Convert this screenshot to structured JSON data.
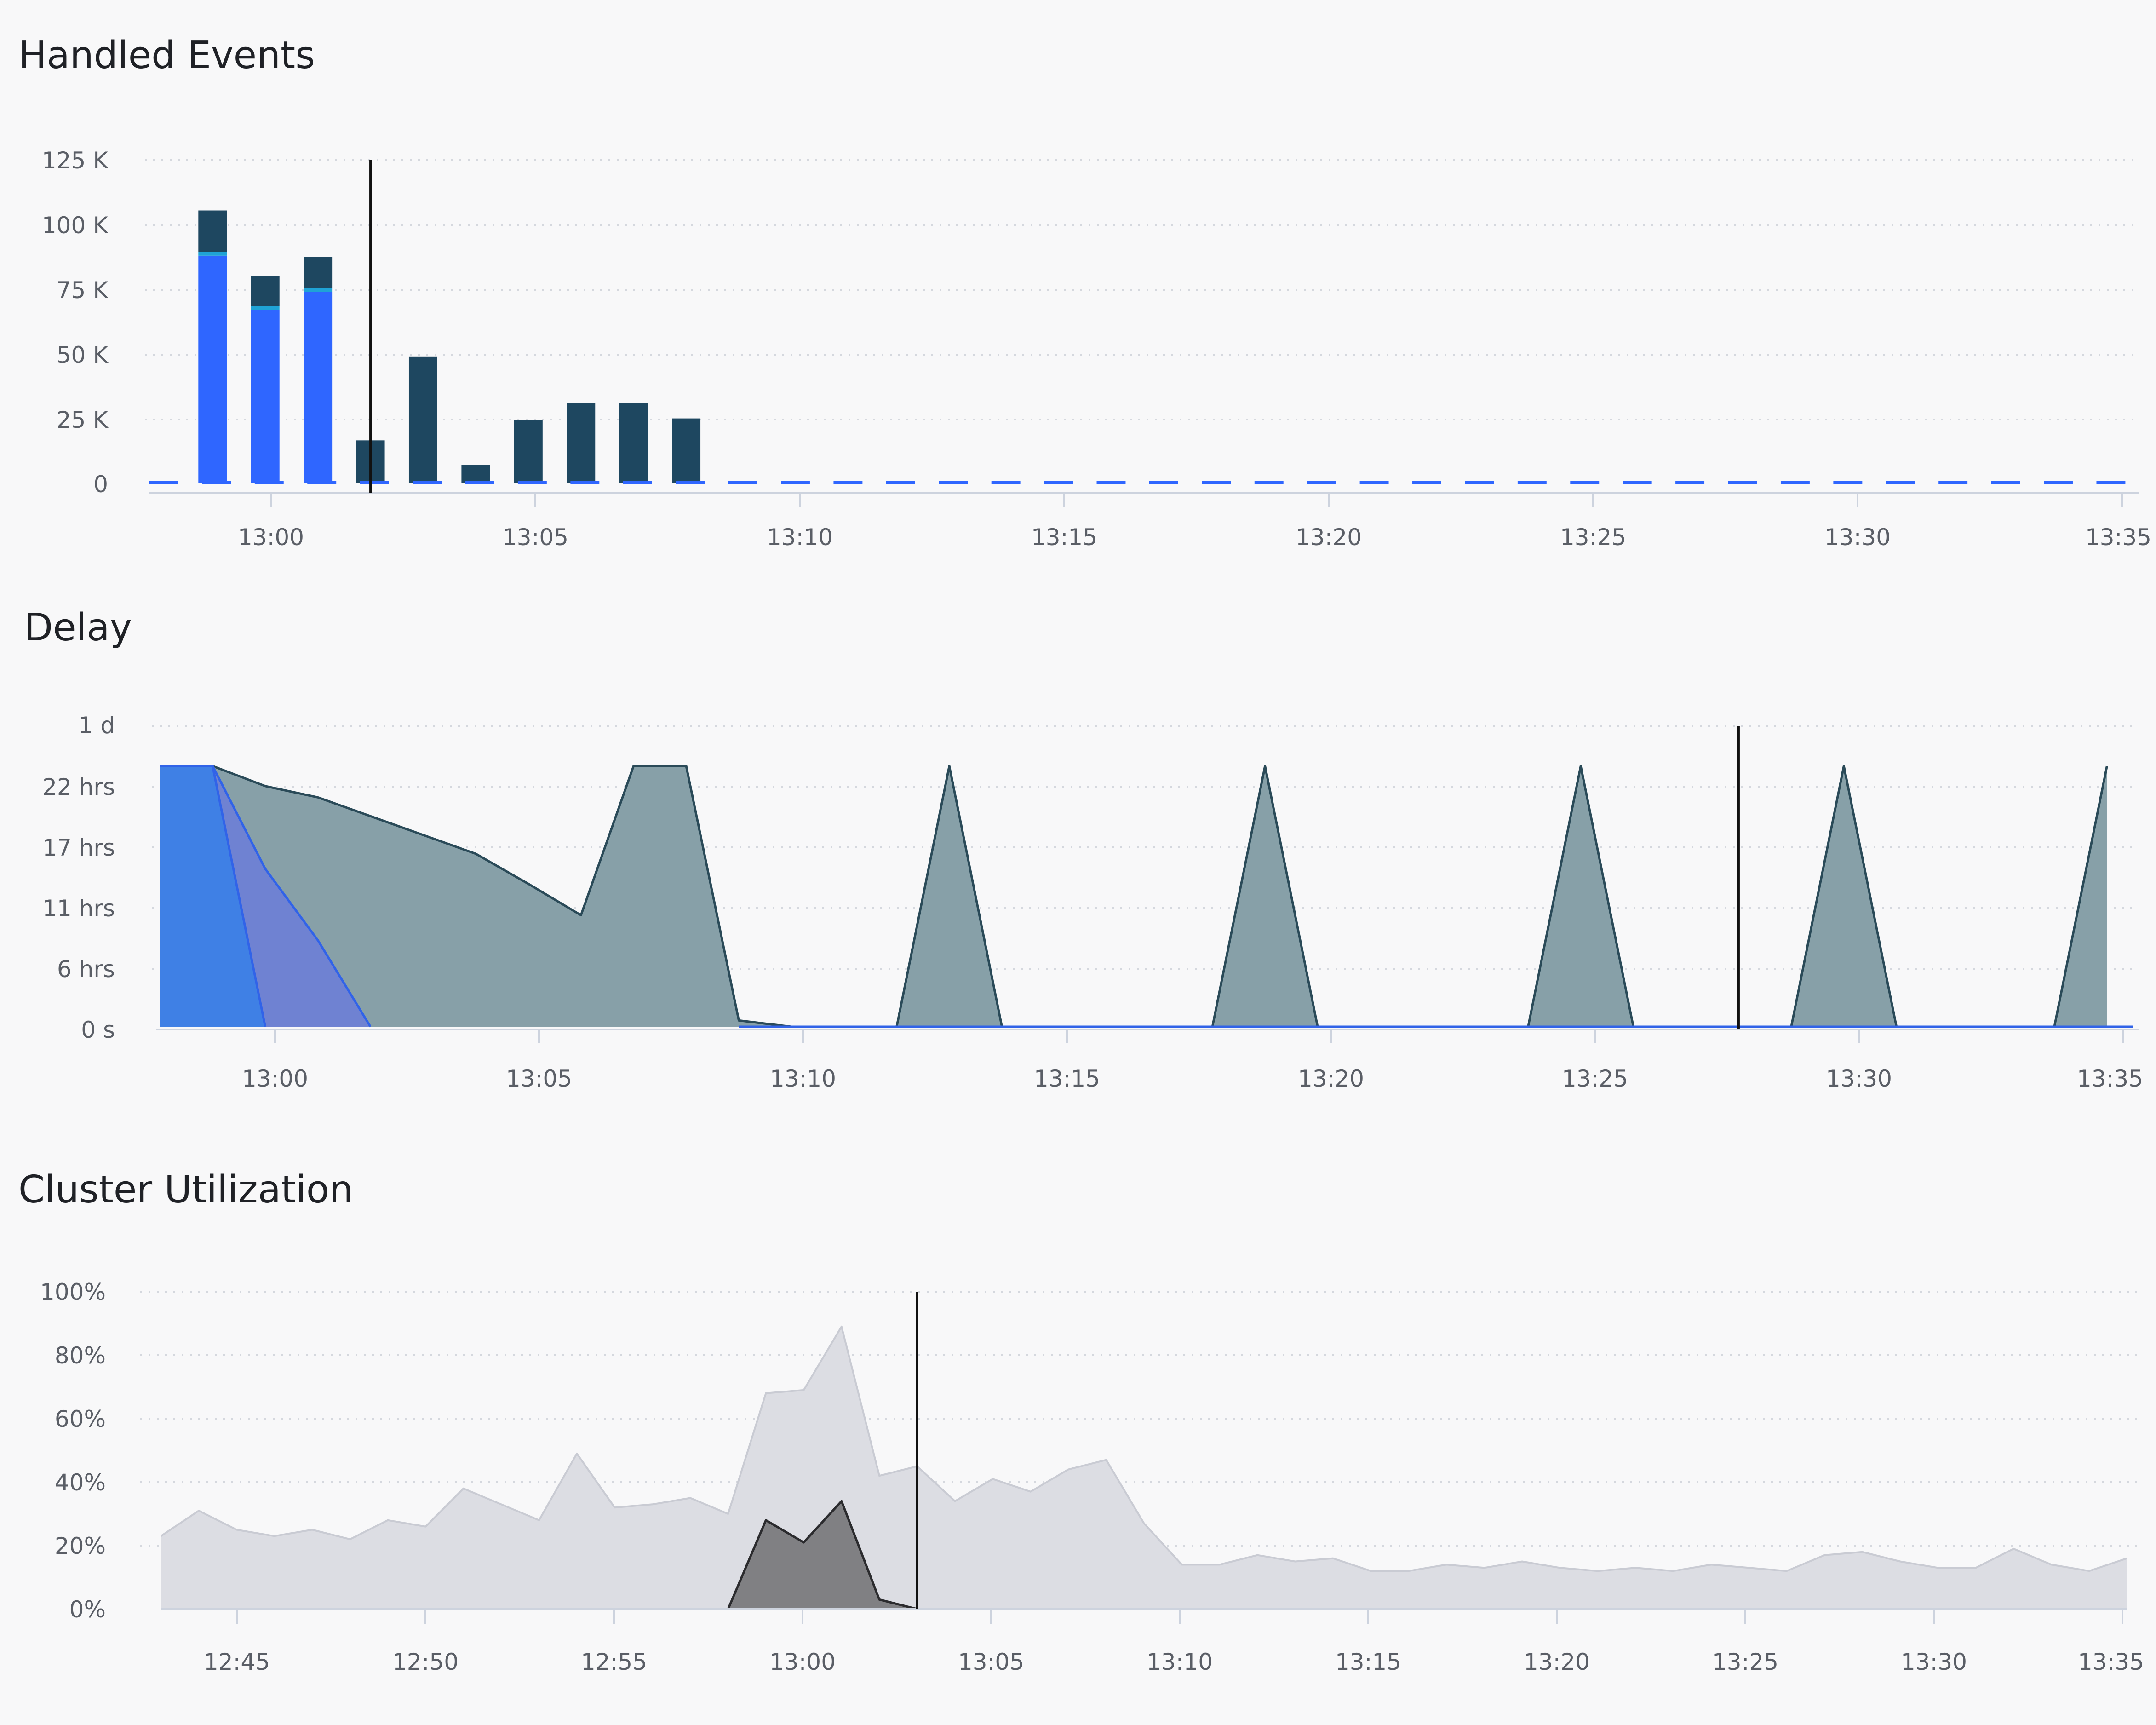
{
  "colors": {
    "dark_navy": "#1e4760",
    "blue": "#2f66ff",
    "teal": "#1fa3d6",
    "delay_blue": "#3b80e6",
    "delay_purple": "#6d7fd6",
    "delay_gray": "#87a0a8",
    "util_light": "#dcdde3",
    "util_dark": "#808083"
  },
  "chart_data": [
    {
      "type": "bar",
      "title": "Handled Events",
      "y_tick_labels": [
        "125 K",
        "100 K",
        "75 K",
        "50 K",
        "25 K",
        "0"
      ],
      "y_ticks": [
        125000,
        100000,
        75000,
        50000,
        25000,
        0
      ],
      "ylim": [
        0,
        125000
      ],
      "x_tick_labels": [
        "13:00",
        "13:05",
        "13:10",
        "13:15",
        "13:20",
        "13:25",
        "13:30",
        "13:35"
      ],
      "x_ticks": [
        780,
        785,
        790,
        795,
        800,
        805,
        810,
        815
      ],
      "xlim": [
        777.8,
        815.6
      ],
      "grid": true,
      "cursor_x": 782,
      "categories": [
        779,
        780,
        781,
        782,
        783,
        784,
        785,
        786,
        787,
        788
      ],
      "series": [
        {
          "color": "#2f66ff",
          "values": [
            88000,
            67000,
            74000,
            0,
            0,
            0,
            0,
            0,
            0,
            0
          ]
        },
        {
          "color": "#1fa3d6",
          "values": [
            1500,
            1500,
            1500,
            0,
            0,
            0,
            0,
            0,
            0,
            0
          ]
        },
        {
          "color": "#1e4760",
          "values": [
            16000,
            11500,
            12000,
            16500,
            49000,
            7000,
            24500,
            31000,
            31000,
            25000
          ]
        }
      ],
      "baseline_dashes": {
        "from": 777.8,
        "to": 815.5,
        "step": 1,
        "color": "#2f66ff"
      }
    },
    {
      "type": "area",
      "title": "Delay",
      "y_tick_labels": [
        "1 d",
        "22 hrs",
        "17 hrs",
        "11 hrs",
        "6 hrs",
        "0 s"
      ],
      "y_ticks": [
        24,
        19.2,
        14.4,
        9.6,
        4.8,
        0
      ],
      "ylim": [
        0,
        24
      ],
      "x_tick_labels": [
        "13:00",
        "13:05",
        "13:10",
        "13:15",
        "13:20",
        "13:25",
        "13:30",
        "13:35"
      ],
      "x_ticks": [
        780,
        785,
        790,
        795,
        800,
        805,
        810,
        815
      ],
      "xlim": [
        777.8,
        815.6
      ],
      "grid": true,
      "cursor_x": 808,
      "series": [
        {
          "color": "#87a0a8",
          "x": [
            778,
            779,
            780,
            781,
            782,
            783,
            784,
            785,
            786,
            787,
            788,
            789,
            790,
            791,
            792,
            793,
            794,
            795,
            796,
            797,
            798,
            799,
            800,
            801,
            802,
            803,
            804,
            805,
            806,
            807,
            808,
            809,
            810,
            811,
            812,
            813,
            814,
            815
          ],
          "y": [
            20.8,
            20.8,
            19.2,
            18.3,
            16.8,
            15.3,
            13.8,
            11.4,
            8.9,
            20.8,
            20.8,
            0.5,
            0,
            0,
            0,
            20.8,
            0,
            0,
            0,
            0,
            0,
            20.8,
            0,
            0,
            0,
            0,
            0,
            20.8,
            0,
            0,
            0,
            0,
            20.8,
            0,
            0,
            0,
            0,
            20.8
          ]
        },
        {
          "color": "#6d7fd6",
          "x": [
            778,
            779,
            780,
            781,
            782
          ],
          "y": [
            20.8,
            20.8,
            12.6,
            6.9,
            0
          ]
        },
        {
          "color": "#3b80e6",
          "x": [
            778,
            779,
            780
          ],
          "y": [
            20.8,
            20.8,
            0
          ]
        }
      ]
    },
    {
      "type": "area",
      "title": "Cluster Utilization",
      "y_tick_labels": [
        "100%",
        "80%",
        "60%",
        "40%",
        "20%",
        "0%"
      ],
      "y_ticks": [
        100,
        80,
        60,
        40,
        20,
        0
      ],
      "ylim": [
        0,
        100
      ],
      "x_tick_labels": [
        "12:45",
        "12:50",
        "12:55",
        "13:00",
        "13:05",
        "13:10",
        "13:15",
        "13:20",
        "13:25",
        "13:30",
        "13:35"
      ],
      "x_ticks": [
        765,
        770,
        775,
        780,
        785,
        790,
        795,
        800,
        805,
        810,
        815
      ],
      "xlim": [
        763,
        815
      ],
      "grid": true,
      "cursor_x": 783,
      "series": [
        {
          "color": "#dcdde3",
          "x": [
            763,
            764,
            765,
            766,
            767,
            768,
            769,
            770,
            771,
            772,
            773,
            774,
            775,
            776,
            777,
            778,
            779,
            780,
            781,
            782,
            783,
            784,
            785,
            786,
            787,
            788,
            789,
            790,
            791,
            792,
            793,
            794,
            795,
            796,
            797,
            798,
            799,
            800,
            801,
            802,
            803,
            804,
            805,
            806,
            807,
            808,
            809,
            810,
            811,
            812,
            813,
            814,
            815
          ],
          "y": [
            23,
            31,
            25,
            23,
            25,
            22,
            28,
            26,
            38,
            33,
            28,
            49,
            32,
            33,
            35,
            30,
            68,
            69,
            89,
            42,
            45,
            34,
            41,
            37,
            44,
            47,
            27,
            14,
            14,
            17,
            15,
            16,
            12,
            12,
            14,
            13,
            15,
            13,
            12,
            13,
            12,
            14,
            13,
            12,
            17,
            18,
            15,
            13,
            13,
            19,
            14,
            12,
            16
          ]
        },
        {
          "color": "#808083",
          "x": [
            763,
            777,
            778,
            779,
            780,
            781,
            782,
            783,
            815
          ],
          "y": [
            0,
            0,
            0,
            28,
            21,
            34,
            3,
            0,
            0
          ]
        }
      ]
    }
  ]
}
